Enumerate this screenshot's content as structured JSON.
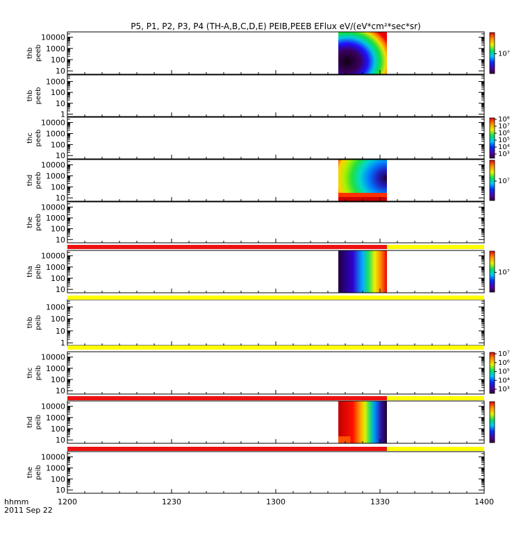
{
  "chart_data": {
    "type": "heatmap",
    "title": "P5, P1, P2, P3, P4 (TH-A,B,C,D,E) PEIB,PEEB EFlux eV/(eV*cm²*sec*sr)",
    "x_ticks": [
      "1200",
      "1230",
      "1300",
      "1330",
      "1400"
    ],
    "x_range_minutes": [
      0,
      120
    ],
    "time_label_top": "hhmm",
    "time_label_bottom": "2011 Sep 22",
    "panels": [
      {
        "label_probe": "thb",
        "label_product": "peeb",
        "y_ticks": [
          "10000",
          "1000",
          "100",
          "10"
        ],
        "y_range": [
          5,
          30000
        ],
        "data": [
          {
            "t0": 78,
            "t1": 92,
            "pattern": "blob"
          }
        ],
        "colorbar": {
          "ticks": [
            "10⁷"
          ]
        }
      },
      {
        "label_probe": "thb",
        "label_product": "peeb",
        "y_ticks": [
          "1000",
          "100",
          "10",
          "1"
        ],
        "y_range": [
          0.6,
          4000
        ],
        "data": [],
        "colorbar": null
      },
      {
        "label_probe": "thc",
        "label_product": "peeb",
        "y_ticks": [
          "10000",
          "1000",
          "100",
          "10"
        ],
        "y_range": [
          5,
          30000
        ],
        "data": [],
        "colorbar": {
          "ticks": [
            "10⁸",
            "10⁷",
            "10⁶",
            "10⁵",
            "10⁴",
            "10³"
          ]
        }
      },
      {
        "label_probe": "thd",
        "label_product": "peeb",
        "y_ticks": [
          "10000",
          "1000",
          "100",
          "10"
        ],
        "y_range": [
          5,
          30000
        ],
        "data": [
          {
            "t0": 78,
            "t1": 92,
            "pattern": "ring"
          }
        ],
        "colorbar": {
          "ticks": [
            "10⁷"
          ]
        }
      },
      {
        "label_probe": "the",
        "label_product": "peeb",
        "y_ticks": [
          "10000",
          "1000",
          "100",
          "10"
        ],
        "y_range": [
          5,
          30000
        ],
        "data": [],
        "colorbar": null
      },
      {
        "label_probe": "tha",
        "label_product": "peib",
        "y_ticks": [
          "10000",
          "1000",
          "100",
          "10"
        ],
        "y_range": [
          5,
          30000
        ],
        "data": [
          {
            "t0": 78,
            "t1": 92,
            "pattern": "wave"
          }
        ],
        "colorbar": {
          "ticks": [
            "10⁷"
          ]
        }
      },
      {
        "label_probe": "thb",
        "label_product": "peib",
        "y_ticks": [
          "1000",
          "100",
          "10",
          "1"
        ],
        "y_range": [
          0.6,
          4000
        ],
        "data": [],
        "colorbar": null
      },
      {
        "label_probe": "thc",
        "label_product": "peib",
        "y_ticks": [
          "10000",
          "1000",
          "100",
          "10"
        ],
        "y_range": [
          5,
          30000
        ],
        "data": [],
        "colorbar": {
          "ticks": [
            "10⁷",
            "10⁶",
            "10⁵",
            "10⁴",
            "10³"
          ]
        }
      },
      {
        "label_probe": "thd",
        "label_product": "peib",
        "y_ticks": [
          "10000",
          "1000",
          "100",
          "10"
        ],
        "y_range": [
          5,
          30000
        ],
        "data": [
          {
            "t0": 78,
            "t1": 92,
            "pattern": "warm"
          }
        ],
        "colorbar": {
          "ticks": []
        }
      },
      {
        "label_probe": "the",
        "label_product": "peib",
        "y_ticks": [
          "10000",
          "1000",
          "100",
          "10"
        ],
        "y_range": [
          5,
          30000
        ],
        "data": [],
        "colorbar": null
      }
    ],
    "mode_bars": [
      {
        "after_panel": 4,
        "segments": [
          {
            "t0": 0,
            "t1": 92,
            "color": "#ee1111"
          },
          {
            "t0": 92,
            "t1": 120,
            "color": "#ffff00"
          }
        ]
      },
      {
        "after_panel": 5,
        "segments": [
          {
            "t0": 0,
            "t1": 120,
            "color": "#ffff00"
          }
        ]
      },
      {
        "after_panel": 6,
        "segments": [
          {
            "t0": 0,
            "t1": 120,
            "color": "#ffff00"
          }
        ]
      },
      {
        "after_panel": 7,
        "segments": [
          {
            "t0": 0,
            "t1": 92,
            "color": "#ee1111"
          },
          {
            "t0": 92,
            "t1": 120,
            "color": "#ffff00"
          }
        ]
      },
      {
        "after_panel": 8,
        "segments": [
          {
            "t0": 0,
            "t1": 92,
            "color": "#ee1111"
          },
          {
            "t0": 92,
            "t1": 120,
            "color": "#ffff00"
          }
        ]
      }
    ]
  }
}
